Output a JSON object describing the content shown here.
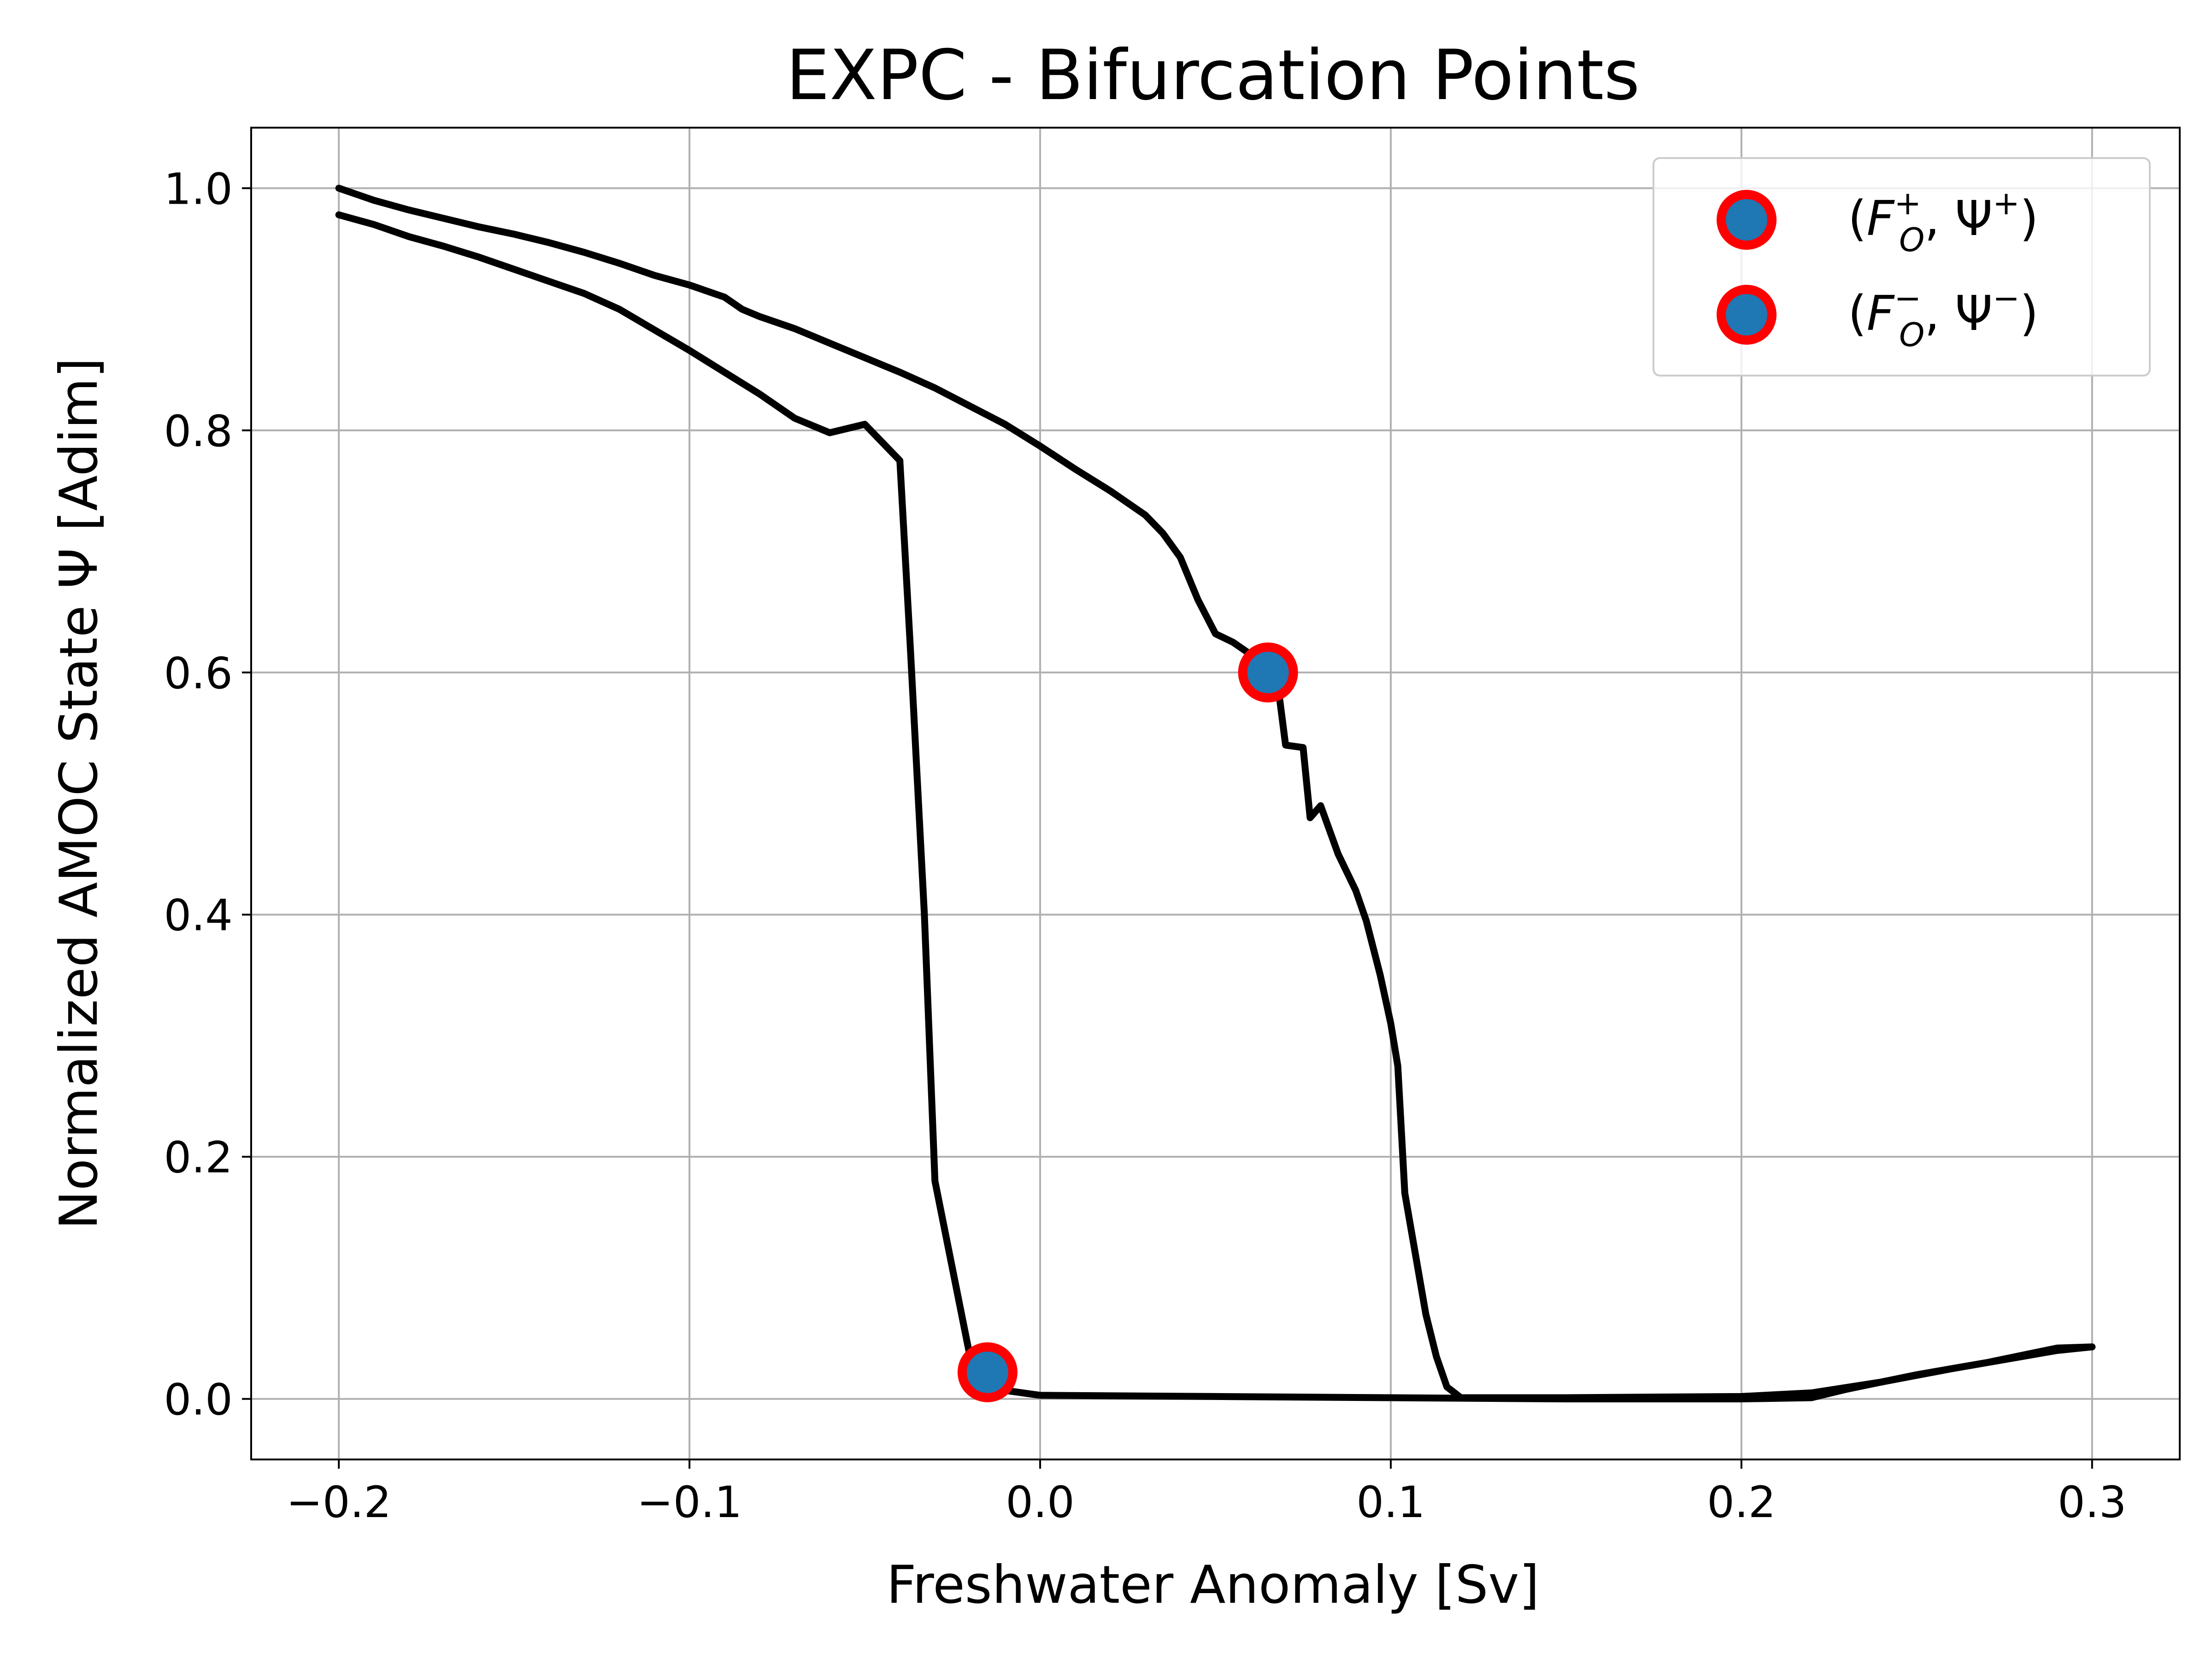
{
  "chart_data": {
    "type": "line",
    "title": "EXPC - Bifurcation Points",
    "xlabel": "Freshwater Anomaly [Sv]",
    "ylabel": "Normalized AMOC State Ψ [Adim]",
    "xlim": [
      -0.225,
      0.325
    ],
    "ylim": [
      -0.05,
      1.05
    ],
    "x_ticks": [
      -0.2,
      -0.1,
      0.0,
      0.1,
      0.2,
      0.3
    ],
    "x_tick_labels": [
      "−0.2",
      "−0.1",
      "0.0",
      "0.1",
      "0.2",
      "0.3"
    ],
    "y_ticks": [
      0.0,
      0.2,
      0.4,
      0.6,
      0.8,
      1.0
    ],
    "y_tick_labels": [
      "0.0",
      "0.2",
      "0.4",
      "0.6",
      "0.8",
      "1.0"
    ],
    "grid": true,
    "legend_position": "top-right",
    "line_color": "#000000",
    "marker_fill": "#1f77b4",
    "marker_edge": "#ff0000",
    "series": [
      {
        "points": [
          [
            -0.2,
            1.0
          ],
          [
            -0.19,
            0.99
          ],
          [
            -0.18,
            0.982
          ],
          [
            -0.17,
            0.975
          ],
          [
            -0.16,
            0.968
          ],
          [
            -0.15,
            0.962
          ],
          [
            -0.14,
            0.955
          ],
          [
            -0.13,
            0.947
          ],
          [
            -0.12,
            0.938
          ],
          [
            -0.11,
            0.928
          ],
          [
            -0.1,
            0.92
          ],
          [
            -0.09,
            0.91
          ],
          [
            -0.085,
            0.9
          ],
          [
            -0.08,
            0.894
          ],
          [
            -0.07,
            0.884
          ],
          [
            -0.06,
            0.872
          ],
          [
            -0.05,
            0.86
          ],
          [
            -0.04,
            0.848
          ],
          [
            -0.03,
            0.835
          ],
          [
            -0.02,
            0.82
          ],
          [
            -0.01,
            0.805
          ],
          [
            0.0,
            0.787
          ],
          [
            0.01,
            0.768
          ],
          [
            0.02,
            0.75
          ],
          [
            0.025,
            0.74
          ],
          [
            0.03,
            0.73
          ],
          [
            0.035,
            0.715
          ],
          [
            0.04,
            0.695
          ],
          [
            0.045,
            0.66
          ],
          [
            0.05,
            0.632
          ],
          [
            0.055,
            0.625
          ],
          [
            0.06,
            0.615
          ],
          [
            0.065,
            0.6
          ],
          [
            0.068,
            0.585
          ],
          [
            0.07,
            0.54
          ],
          [
            0.075,
            0.538
          ],
          [
            0.077,
            0.48
          ],
          [
            0.08,
            0.49
          ],
          [
            0.085,
            0.45
          ],
          [
            0.09,
            0.42
          ],
          [
            0.093,
            0.395
          ],
          [
            0.097,
            0.35
          ],
          [
            0.1,
            0.31
          ],
          [
            0.102,
            0.275
          ],
          [
            0.104,
            0.17
          ],
          [
            0.107,
            0.12
          ],
          [
            0.11,
            0.07
          ],
          [
            0.113,
            0.035
          ],
          [
            0.116,
            0.01
          ],
          [
            0.12,
            0.001
          ],
          [
            0.15,
            0.001
          ],
          [
            0.2,
            0.002
          ],
          [
            0.22,
            0.005
          ],
          [
            0.24,
            0.014
          ],
          [
            0.26,
            0.025
          ],
          [
            0.28,
            0.035
          ],
          [
            0.29,
            0.04
          ],
          [
            0.3,
            0.043
          ]
        ]
      },
      {
        "points": [
          [
            0.3,
            0.043
          ],
          [
            0.29,
            0.042
          ],
          [
            0.27,
            0.03
          ],
          [
            0.25,
            0.02
          ],
          [
            0.23,
            0.008
          ],
          [
            0.22,
            0.001
          ],
          [
            0.2,
            0.0
          ],
          [
            0.15,
            0.0
          ],
          [
            0.1,
            0.001
          ],
          [
            0.05,
            0.002
          ],
          [
            0.0,
            0.003
          ],
          [
            -0.01,
            0.007
          ],
          [
            -0.015,
            0.022
          ],
          [
            -0.02,
            0.035
          ],
          [
            -0.03,
            0.18
          ],
          [
            -0.033,
            0.4
          ],
          [
            -0.037,
            0.62
          ],
          [
            -0.04,
            0.775
          ],
          [
            -0.05,
            0.805
          ],
          [
            -0.06,
            0.798
          ],
          [
            -0.07,
            0.81
          ],
          [
            -0.08,
            0.83
          ],
          [
            -0.09,
            0.848
          ],
          [
            -0.1,
            0.866
          ],
          [
            -0.11,
            0.883
          ],
          [
            -0.12,
            0.9
          ],
          [
            -0.13,
            0.913
          ],
          [
            -0.14,
            0.923
          ],
          [
            -0.15,
            0.933
          ],
          [
            -0.16,
            0.943
          ],
          [
            -0.17,
            0.952
          ],
          [
            -0.18,
            0.96
          ],
          [
            -0.19,
            0.97
          ],
          [
            -0.2,
            0.978
          ]
        ]
      }
    ],
    "bifurcation_points": [
      {
        "x": 0.065,
        "y": 0.6
      },
      {
        "x": -0.015,
        "y": 0.022
      }
    ],
    "legend": [
      {
        "base": "F",
        "sub": "O",
        "sup": "+",
        "psi_sup": "+"
      },
      {
        "base": "F",
        "sub": "O",
        "sup": "−",
        "psi_sup": "−"
      }
    ]
  }
}
